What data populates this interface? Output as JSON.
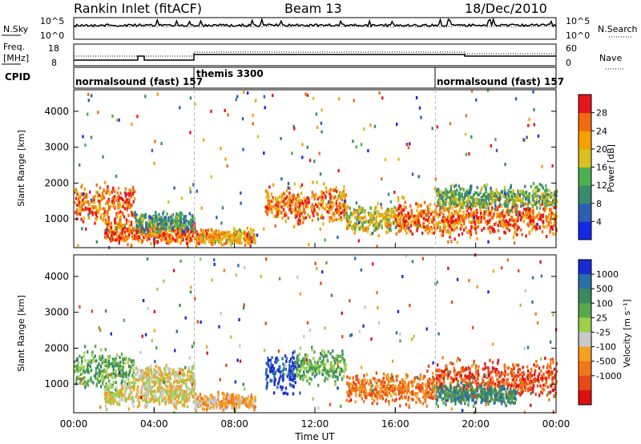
{
  "header": {
    "station": "Rankin Inlet (fitACF)",
    "beam": "Beam 13",
    "date": "18/Dec/2010"
  },
  "noise_panel": {
    "left_label": "N.Sky",
    "left_ticks": [
      "10^5",
      "10^0"
    ],
    "right_label": "N.Search",
    "right_ticks": [
      "10^5",
      "10^0"
    ]
  },
  "freq_panel": {
    "left_label_line1": "Freq.",
    "left_label_line2": "[MHz]",
    "left_ticks": [
      "18",
      "8"
    ],
    "right_label": "Nave",
    "right_ticks": [
      "60",
      "0"
    ]
  },
  "cpid_panel": {
    "label": "CPID",
    "segments": [
      {
        "start_hour": 0,
        "label": "normalsound (fast) 157"
      },
      {
        "start_hour": 6,
        "label": "themis 3300"
      },
      {
        "start_hour": 18,
        "label": "normalsound (fast) 157"
      }
    ]
  },
  "time_axis": {
    "label": "Time UT",
    "ticks": [
      "00:00",
      "04:00",
      "08:00",
      "12:00",
      "16:00",
      "20:00",
      "00:00"
    ]
  },
  "chart_data": [
    {
      "type": "heatmap",
      "panel": "power",
      "ylabel": "Slant Range [km]",
      "yticks": [
        1000,
        2000,
        3000,
        4000
      ],
      "ylim": [
        200,
        4600
      ],
      "xlim_hours": [
        0,
        24
      ],
      "colorbar_label": "Power [dB]",
      "colorbar_ticks": [
        "4",
        "8",
        "12",
        "16",
        "20",
        "24",
        "28"
      ],
      "colors": [
        "#1428e6",
        "#2c5fb0",
        "#3a8a6e",
        "#4caf50",
        "#d8c020",
        "#f5a000",
        "#f26a10",
        "#e8161a"
      ],
      "vmin": 0,
      "vmax": 32,
      "scatter_bands": [
        {
          "t0": 0,
          "t1": 3,
          "r": 1400,
          "w": 500,
          "v": 25
        },
        {
          "t0": 1.5,
          "t1": 6,
          "r": 600,
          "w": 300,
          "v": 27
        },
        {
          "t0": 3,
          "t1": 6,
          "r": 900,
          "w": 250,
          "v": 12
        },
        {
          "t0": 6,
          "t1": 9,
          "r": 500,
          "w": 200,
          "v": 22
        },
        {
          "t0": 9.5,
          "t1": 13.5,
          "r": 1400,
          "w": 500,
          "v": 24
        },
        {
          "t0": 13.5,
          "t1": 16,
          "r": 1000,
          "w": 400,
          "v": 18
        },
        {
          "t0": 16,
          "t1": 24,
          "r": 1000,
          "w": 450,
          "v": 26
        },
        {
          "t0": 18,
          "t1": 24,
          "r": 1600,
          "w": 300,
          "v": 14
        }
      ]
    },
    {
      "type": "heatmap",
      "panel": "velocity",
      "ylabel": "Slant Range [km]",
      "yticks": [
        1000,
        2000,
        3000,
        4000
      ],
      "ylim": [
        200,
        4600
      ],
      "xlim_hours": [
        0,
        24
      ],
      "colorbar_label": "Velocity [m s⁻¹]",
      "colorbar_ticks": [
        "1000",
        "500",
        "100",
        "25",
        "-25",
        "-100",
        "-500",
        "-1000"
      ],
      "colors": [
        "#1a2ad6",
        "#2b6fa8",
        "#3a8a5e",
        "#58a848",
        "#9ccf4a",
        "#c8c8c8",
        "#f5a020",
        "#f07818",
        "#e84818",
        "#e01010"
      ],
      "scatter_bands": [
        {
          "t0": 0,
          "t1": 3,
          "r": 1400,
          "w": 500,
          "v": 3
        },
        {
          "t0": 1.5,
          "t1": 6,
          "r": 700,
          "w": 300,
          "v": 5
        },
        {
          "t0": 3,
          "t1": 6,
          "r": 1200,
          "w": 300,
          "v": 5
        },
        {
          "t0": 6,
          "t1": 9,
          "r": 500,
          "w": 200,
          "v": 6
        },
        {
          "t0": 9.5,
          "t1": 11,
          "r": 1300,
          "w": 500,
          "v": 0
        },
        {
          "t0": 11,
          "t1": 13.5,
          "r": 1500,
          "w": 400,
          "v": 3
        },
        {
          "t0": 13.5,
          "t1": 18,
          "r": 900,
          "w": 400,
          "v": 7
        },
        {
          "t0": 18,
          "t1": 24,
          "r": 1100,
          "w": 500,
          "v": 8
        },
        {
          "t0": 18,
          "t1": 22,
          "r": 700,
          "w": 250,
          "v": 2
        }
      ]
    }
  ]
}
